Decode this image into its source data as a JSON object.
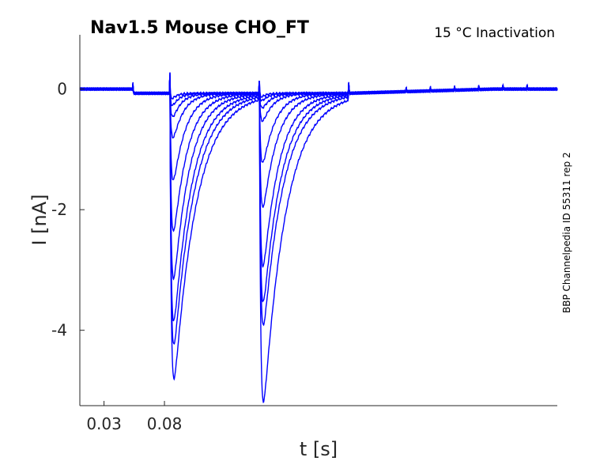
{
  "chart_data": {
    "type": "line",
    "title": "Nav1.5  Mouse  CHO_FT",
    "condition": "15 °C  Inactivation",
    "side_note": "BBP Channelpedia ID 55311 rep 2",
    "xlabel": "t [s]",
    "ylabel": "I [nA]",
    "xlim": [
      0.01,
      0.405
    ],
    "ylim": [
      -5.25,
      0.9
    ],
    "x_ticks": [
      0.03,
      0.08
    ],
    "x_tick_labels": [
      "0.03",
      "0.08"
    ],
    "y_ticks": [
      0,
      -2,
      -4
    ],
    "y_tick_labels": [
      "0",
      "-2",
      "-4"
    ],
    "grid": false,
    "line_color": "#0000ff",
    "protocol": {
      "baseline": 0.0,
      "holding_offset": -0.07,
      "step1_start": 0.0845,
      "step2_start": 0.1585,
      "step2_end": 0.2325,
      "prestep_artifact_x": 0.054,
      "tail_artifacts_x": [
        0.28,
        0.3,
        0.32,
        0.34,
        0.36,
        0.38
      ]
    },
    "series": [
      {
        "peak1": -0.12,
        "peak2": -0.08
      },
      {
        "peak1": -0.25,
        "peak2": -0.15
      },
      {
        "peak1": -0.45,
        "peak2": -0.28
      },
      {
        "peak1": -0.8,
        "peak2": -0.5
      },
      {
        "peak1": -1.5,
        "peak2": -1.2
      },
      {
        "peak1": -2.3,
        "peak2": -1.9
      },
      {
        "peak1": -3.0,
        "peak2": -2.8
      },
      {
        "peak1": -3.6,
        "peak2": -3.3
      },
      {
        "peak1": -3.9,
        "peak2": -3.6
      },
      {
        "peak1": -4.35,
        "peak2": -4.7
      }
    ]
  }
}
